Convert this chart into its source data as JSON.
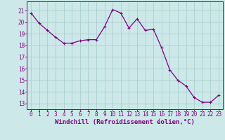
{
  "x": [
    0,
    1,
    2,
    3,
    4,
    5,
    6,
    7,
    8,
    9,
    10,
    11,
    12,
    13,
    14,
    15,
    16,
    17,
    18,
    19,
    20,
    21,
    22,
    23
  ],
  "y": [
    20.8,
    19.9,
    19.3,
    18.7,
    18.2,
    18.2,
    18.4,
    18.5,
    18.5,
    19.6,
    21.1,
    20.8,
    19.5,
    20.3,
    19.3,
    19.4,
    17.8,
    15.9,
    15.0,
    14.5,
    13.5,
    13.1,
    13.1,
    13.7
  ],
  "line_color": "#800080",
  "marker": "+",
  "bg_color": "#cce8e8",
  "grid_color": "#aacece",
  "xlabel": "Windchill (Refroidissement éolien,°C)",
  "xtick_labels": [
    "0",
    "1",
    "2",
    "3",
    "4",
    "5",
    "6",
    "7",
    "8",
    "9",
    "10",
    "11",
    "12",
    "13",
    "14",
    "15",
    "16",
    "17",
    "18",
    "19",
    "20",
    "21",
    "22",
    "23"
  ],
  "ytick_labels": [
    "13",
    "14",
    "15",
    "16",
    "17",
    "18",
    "19",
    "20",
    "21"
  ],
  "ylim": [
    12.5,
    21.8
  ],
  "xlim": [
    -0.5,
    23.5
  ],
  "axis_color": "#800080",
  "tick_color": "#800080",
  "font_size": 5.5,
  "xlabel_fontsize": 6.5,
  "line_width": 0.9,
  "marker_size": 3.5,
  "marker_edge_width": 0.8
}
